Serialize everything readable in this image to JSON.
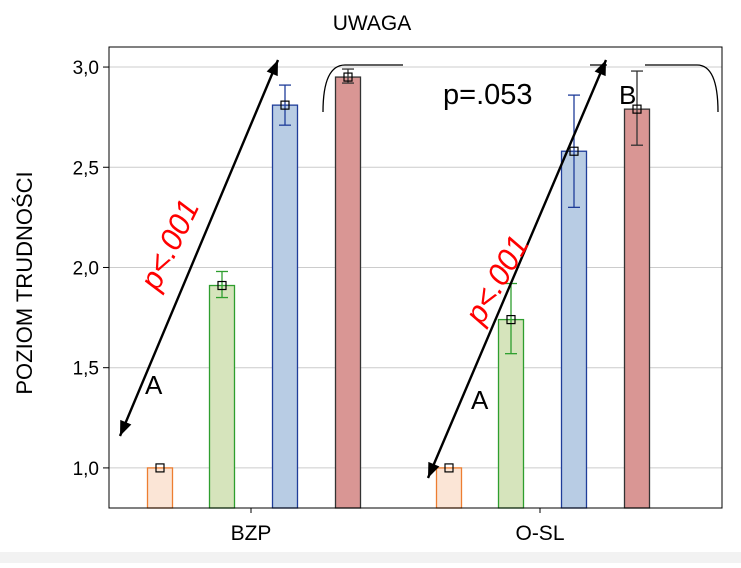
{
  "chart_data": {
    "type": "bar",
    "title": "UWAGA",
    "xlabel": "",
    "ylabel": "POZIOM TRUDNOŚCI",
    "ylim": [
      0.8,
      3.1
    ],
    "yticks": [
      "1,0",
      "1,5",
      "2,0",
      "2,5",
      "3,0"
    ],
    "ytick_values": [
      1.0,
      1.5,
      2.0,
      2.5,
      3.0
    ],
    "grid": true,
    "categories": [
      "BZP",
      "O-SL"
    ],
    "series": [
      {
        "values": [
          1.0,
          1.0
        ],
        "err_low": [
          1.0,
          1.0
        ],
        "err_high": [
          1.0,
          1.0
        ],
        "fill": "#fbe5d6",
        "stroke": "#ed7d31"
      },
      {
        "values": [
          1.91,
          1.74
        ],
        "err_low": [
          1.85,
          1.57
        ],
        "err_high": [
          1.98,
          1.92
        ],
        "fill": "#d6e4bc",
        "stroke": "#2e9e2e"
      },
      {
        "values": [
          2.81,
          2.58
        ],
        "err_low": [
          2.71,
          2.3
        ],
        "err_high": [
          2.91,
          2.86
        ],
        "fill": "#b8cce4",
        "stroke": "#1f3d99"
      },
      {
        "values": [
          2.95,
          2.79
        ],
        "err_low": [
          2.92,
          2.61
        ],
        "err_high": [
          2.99,
          2.98
        ],
        "fill": "#d99694",
        "stroke": "#333333"
      }
    ],
    "annotations": {
      "p_bzp": "p<.001",
      "p_osl": "p<.001",
      "p_between": "p=.053",
      "label_a_bzp": "A",
      "label_a_osl": "A",
      "label_b": "B"
    },
    "colors": {
      "annotation_red": "#ff0000",
      "grid": "#cccccc",
      "border": "#000000",
      "figure_bg": "#f2f2f2"
    }
  }
}
